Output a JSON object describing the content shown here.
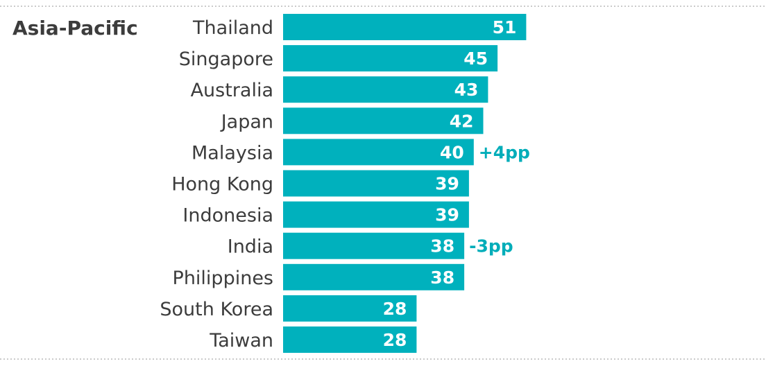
{
  "chart_data": {
    "type": "bar",
    "orientation": "horizontal",
    "group_label": "Asia-Pacific",
    "categories": [
      "Thailand",
      "Singapore",
      "Australia",
      "Japan",
      "Malaysia",
      "Hong Kong",
      "Indonesia",
      "India",
      "Philippines",
      "South Korea",
      "Taiwan"
    ],
    "values": [
      51,
      45,
      43,
      42,
      40,
      39,
      39,
      38,
      38,
      28,
      28
    ],
    "annotations": [
      {
        "category": "Malaysia",
        "text": "+4pp"
      },
      {
        "category": "India",
        "text": "-3pp"
      }
    ],
    "grid": false,
    "colors": {
      "bar": "#00b1bd",
      "bar_label": "#ffffff",
      "annotation": "#00adb9",
      "text": "#3c3c3c",
      "rule": "#b8b8b8"
    }
  }
}
